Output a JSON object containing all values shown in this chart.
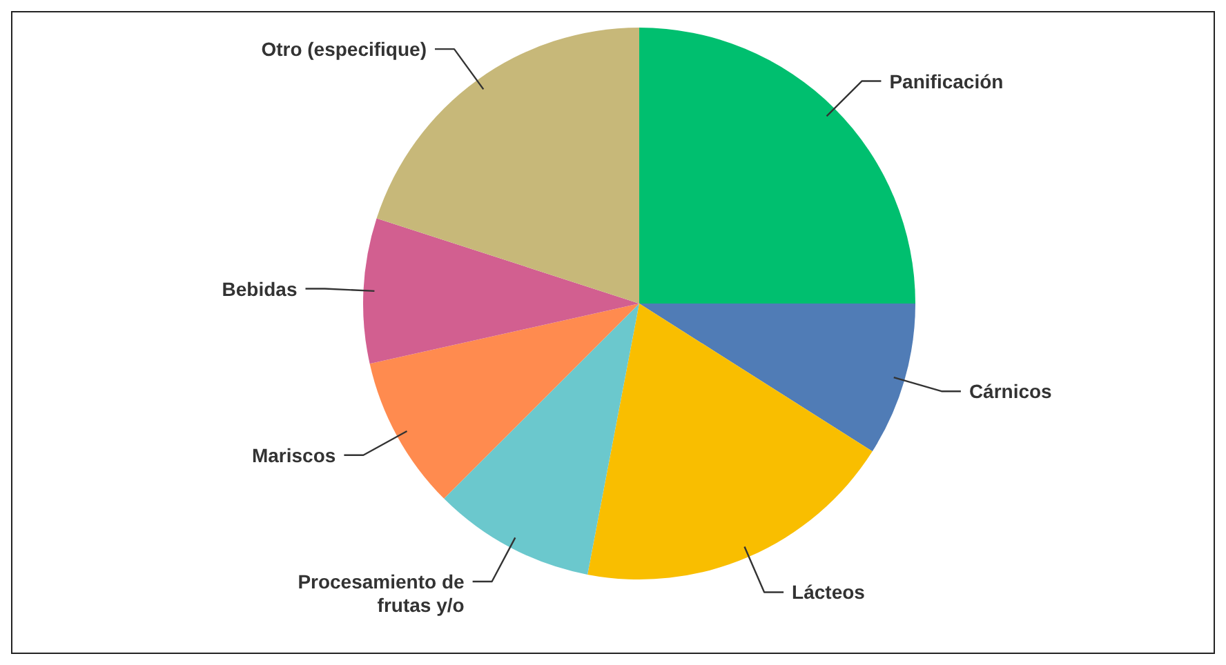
{
  "chart_data": {
    "type": "pie",
    "categories": [
      "Panificación",
      "Cárnicos",
      "Lácteos",
      "Procesamiento de frutas y/o",
      "Mariscos",
      "Bebidas",
      "Otro (especifique)"
    ],
    "values": [
      25,
      9,
      19,
      9.5,
      9,
      8.5,
      20
    ],
    "colors": [
      "#00bf6f",
      "#507cb6",
      "#f9be00",
      "#6bc8cd",
      "#ff8b4f",
      "#d25f90",
      "#c7b879"
    ]
  }
}
